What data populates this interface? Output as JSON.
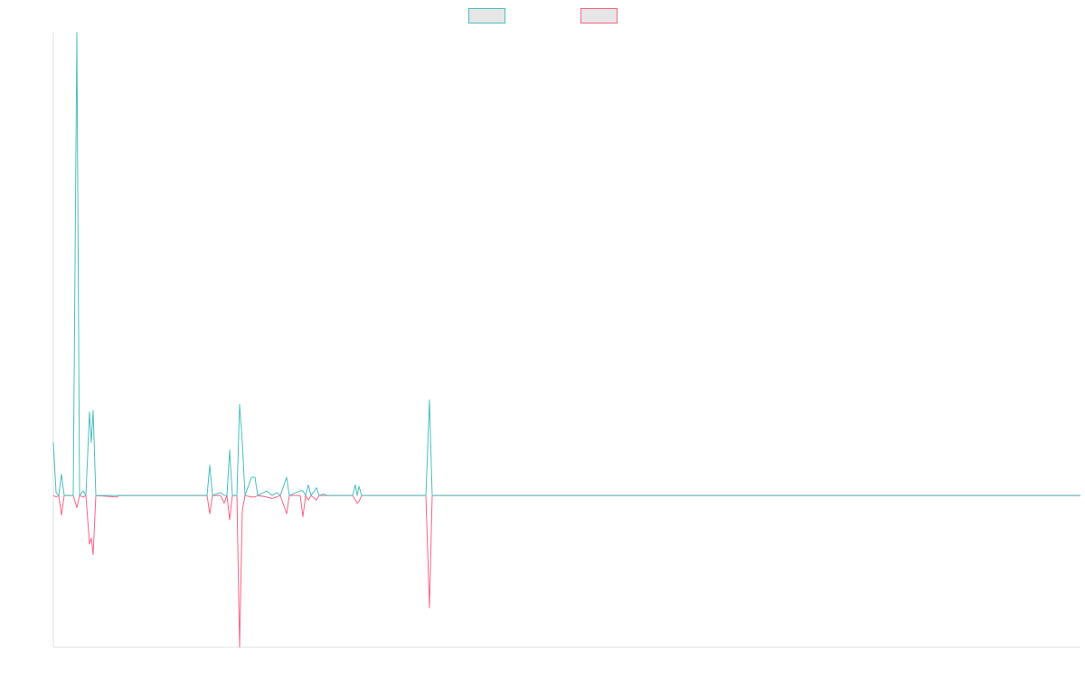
{
  "chart_data": {
    "type": "line",
    "x": [
      0,
      3,
      6,
      9,
      12,
      22,
      26,
      29,
      33,
      36,
      40,
      42,
      44,
      47,
      70,
      73,
      170,
      173,
      176,
      185,
      189,
      192,
      195,
      198,
      203,
      206,
      209,
      212,
      219,
      223,
      226,
      236,
      242,
      247,
      251,
      258,
      261,
      273,
      276,
      279,
      282,
      285,
      291,
      294,
      299,
      303,
      331,
      334,
      336,
      338,
      341,
      412,
      416,
      419,
      1136
    ],
    "xlim": [
      0,
      1136
    ],
    "ylim": [
      -100,
      305
    ],
    "series": [
      {
        "color": "#4bc0c0",
        "values": [
          35,
          2,
          0,
          14,
          0,
          0,
          305,
          0,
          3,
          0,
          55,
          35,
          56,
          0,
          0,
          0,
          0,
          20,
          0,
          2,
          0,
          0,
          30,
          0,
          0,
          60,
          35,
          0,
          12,
          12,
          0,
          3,
          0,
          2,
          0,
          12,
          0,
          3,
          3,
          0,
          7,
          0,
          5,
          0,
          1,
          0,
          0,
          7,
          0,
          6,
          0,
          0,
          63,
          0,
          0
        ]
      },
      {
        "color": "#ff6384",
        "values": [
          0,
          -1,
          0,
          -13,
          0,
          0,
          -8,
          0,
          -1,
          0,
          -32,
          -28,
          -39,
          0,
          -1,
          0,
          0,
          -12,
          0,
          0,
          -5,
          0,
          -16,
          0,
          0,
          -100,
          -10,
          0,
          -1,
          -1,
          0,
          -1,
          -2,
          -1,
          0,
          -12,
          0,
          0,
          -14,
          0,
          -3,
          0,
          -3,
          0,
          0,
          0,
          0,
          -3,
          -5,
          -4,
          0,
          0,
          -74,
          0,
          0
        ]
      }
    ]
  }
}
